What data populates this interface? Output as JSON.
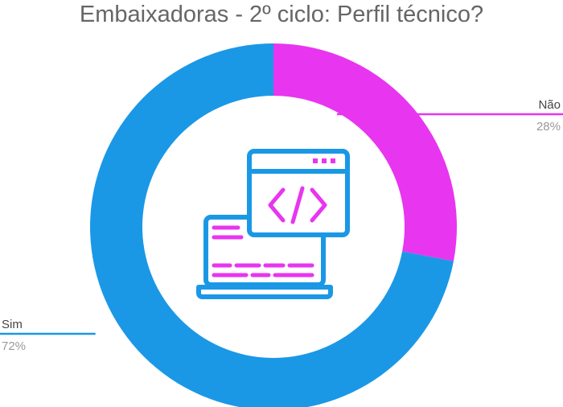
{
  "chart_data": {
    "type": "pie",
    "title": "Embaixadoras - 2º ciclo: Perfil técnico?",
    "slices": [
      {
        "label": "Não",
        "value": 28,
        "value_label": "28%",
        "color": "#E835F0"
      },
      {
        "label": "Sim",
        "value": 72,
        "value_label": "72%",
        "color": "#1A98E6"
      }
    ],
    "donut": true,
    "center_icon": "laptop-code-window-icon"
  }
}
